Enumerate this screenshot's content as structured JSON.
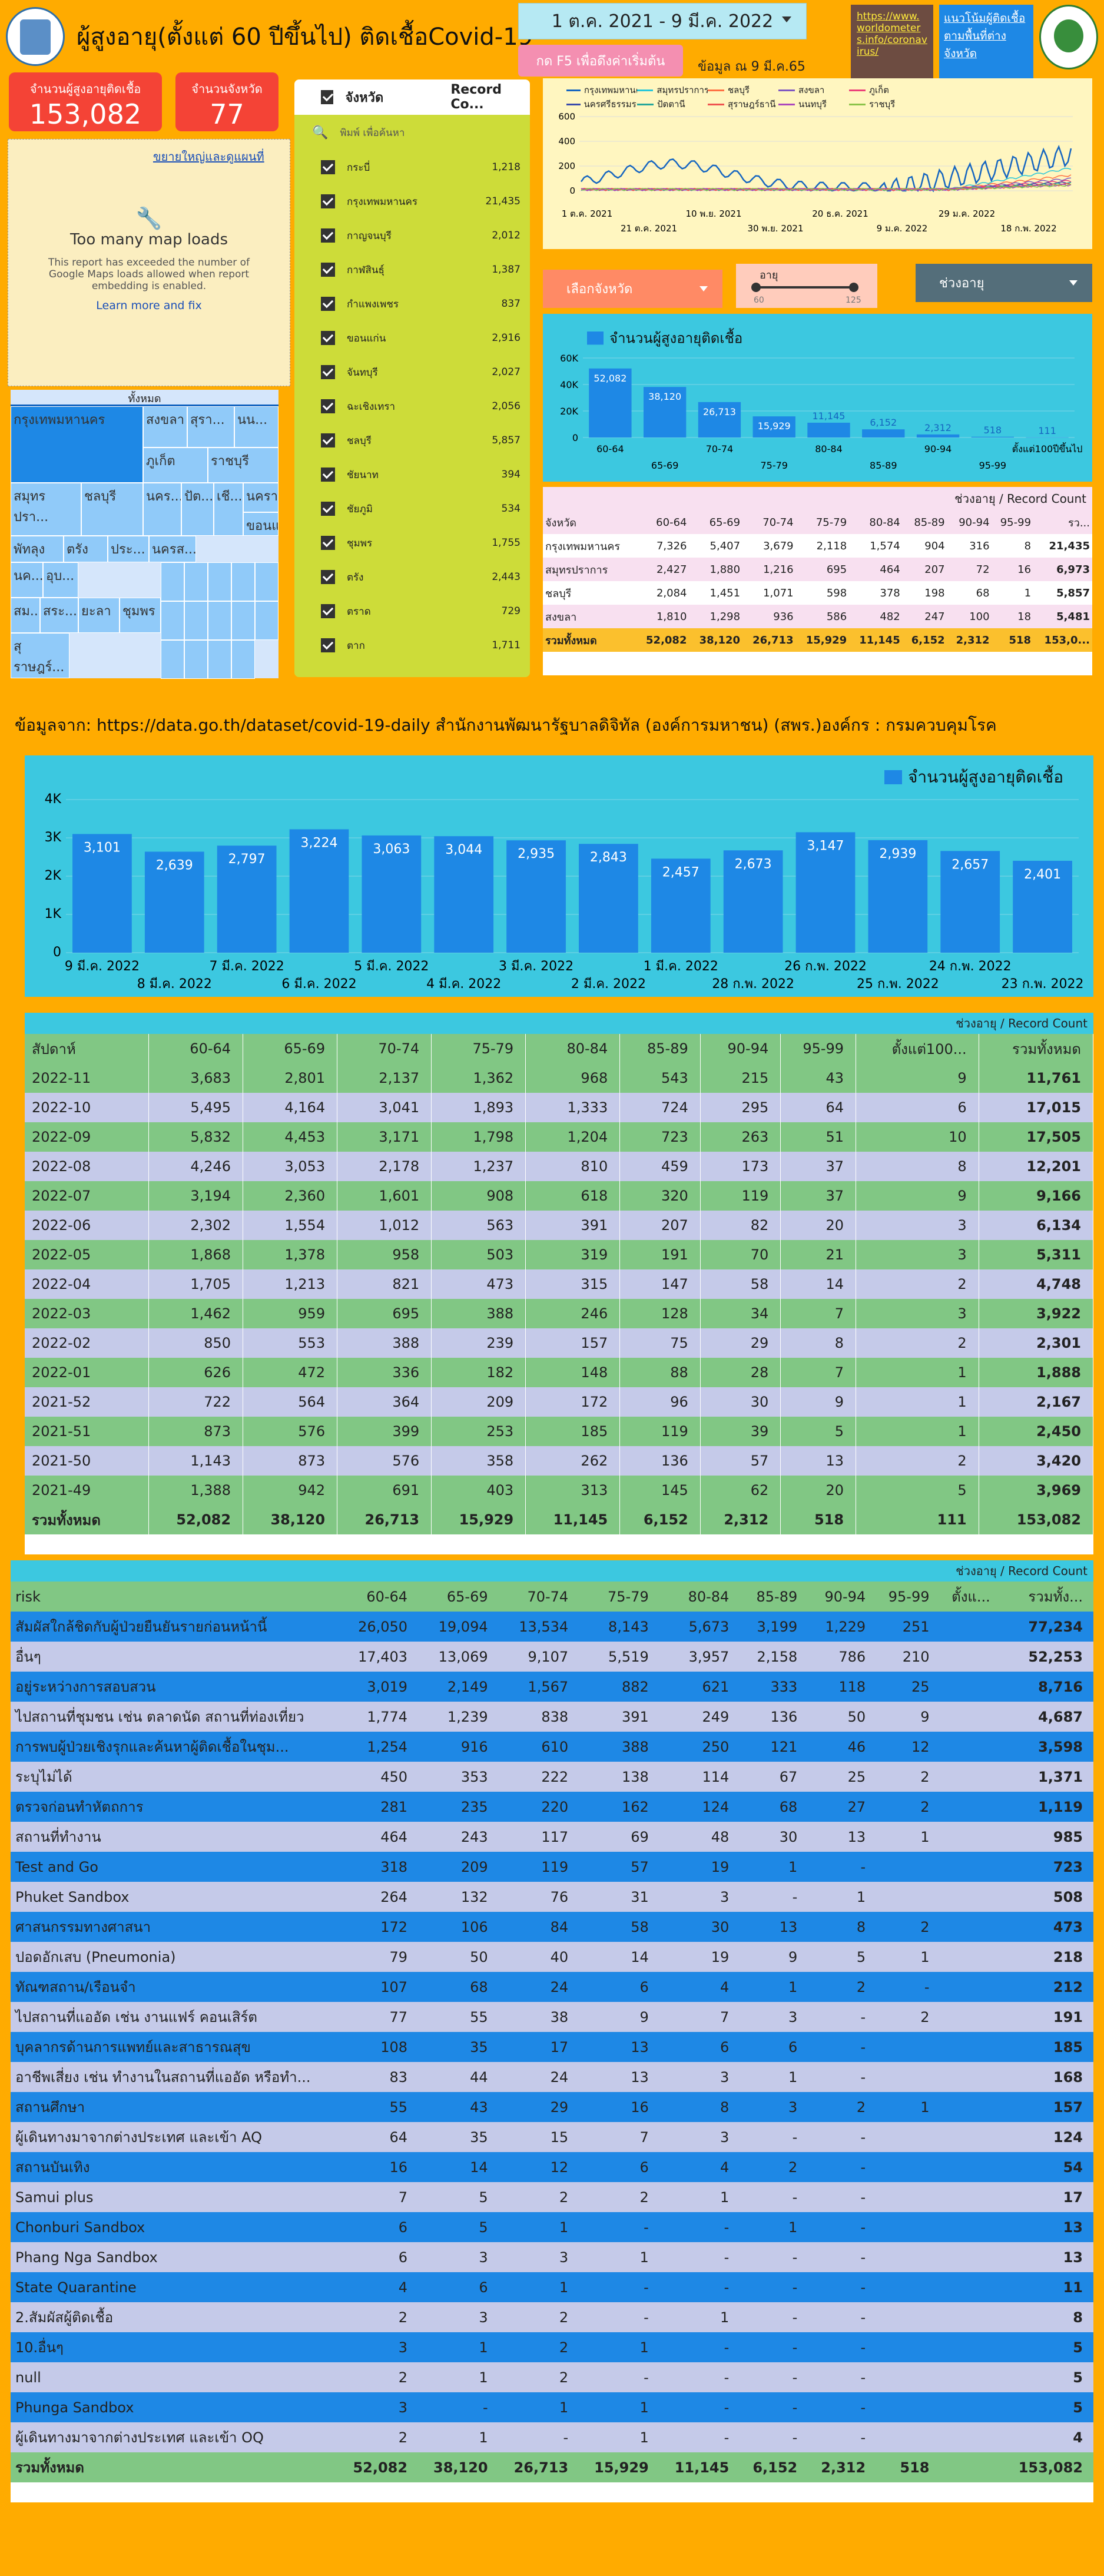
{
  "header": {
    "title": "ผู้สูงอายุ(ตั้งแต่ 60 ปีขึ้นไป) ติดเชื้อCovid-19",
    "date_range": "1 ต.ค. 2021 - 9 มี.ค. 2022",
    "refresh_label": "กด F5 เพื่อดึงค่าเริ่มต้น",
    "as_of": "ข้อมูล ณ 9 มี.ค.65",
    "link1": "https://www.worldometers.info/coronavirus/",
    "link2": "แนวโน้มผู้ติดเชื้อตามพื้นที่ต่างจังหวัด"
  },
  "scorecards": {
    "elderly_label": "จำนวนผู้สูงอายุติดเชื้อ",
    "elderly_value": "153,082",
    "prov_label": "จำนวนจังหวัด",
    "prov_value": "77"
  },
  "map": {
    "link": "ขยายใหญ่และดูแผนที่",
    "title": "Too many map loads",
    "msg": "This report has exceeded the number of Google Maps loads allowed when report embedding is enabled.",
    "learn": "Learn more and fix",
    "icon": "wrench-icon"
  },
  "treemap": {
    "header": "ทั้งหมด",
    "cells": [
      {
        "label": "กรุงเทพมหานคร"
      },
      {
        "label": "สงขลา"
      },
      {
        "label": "สุรา..."
      },
      {
        "label": "นน..."
      },
      {
        "label": "ภูเก็ต"
      },
      {
        "label": "ราชบุรี"
      },
      {
        "label": "สมุทรปรา..."
      },
      {
        "label": "ชลบุรี"
      },
      {
        "label": "นคร..."
      },
      {
        "label": "ปัต..."
      },
      {
        "label": "เชี..."
      },
      {
        "label": "นครา..."
      },
      {
        "label": "ขอนแ..."
      },
      {
        "label": "พัทลุง"
      },
      {
        "label": "ตรัง"
      },
      {
        "label": "ประ..."
      },
      {
        "label": "นครส..."
      },
      {
        "label": "นค..."
      },
      {
        "label": "อุบ..."
      },
      {
        "label": "สม..."
      },
      {
        "label": "สระ..."
      },
      {
        "label": "ยะลา"
      },
      {
        "label": "สุราษฎร์..."
      },
      {
        "label": "ชุมพร"
      }
    ]
  },
  "province_list": {
    "col1": "จังหวัด",
    "col2": "Record Co...",
    "search": "พิมพ์ เพื่อค้นหา",
    "rows": [
      {
        "name": "กระบี่",
        "count": "1,218"
      },
      {
        "name": "กรุงเทพมหานคร",
        "count": "21,435"
      },
      {
        "name": "กาญจนบุรี",
        "count": "2,012"
      },
      {
        "name": "กาฬสินธุ์",
        "count": "1,387"
      },
      {
        "name": "กำแพงเพชร",
        "count": "837"
      },
      {
        "name": "ขอนแก่น",
        "count": "2,916"
      },
      {
        "name": "จันทบุรี",
        "count": "2,027"
      },
      {
        "name": "ฉะเชิงเทรา",
        "count": "2,056"
      },
      {
        "name": "ชลบุรี",
        "count": "5,857"
      },
      {
        "name": "ชัยนาท",
        "count": "394"
      },
      {
        "name": "ชัยภูมิ",
        "count": "534"
      },
      {
        "name": "ชุมพร",
        "count": "1,755"
      },
      {
        "name": "ตรัง",
        "count": "2,443"
      },
      {
        "name": "ตราด",
        "count": "729"
      },
      {
        "name": "ตาก",
        "count": "1,711"
      }
    ]
  },
  "line_chart": {
    "legend": [
      "กรุงเทพมหานคร",
      "สมุทรปราการ",
      "ชลบุรี",
      "สงขลา",
      "ภูเก็ต",
      "นครศรีธรรมราช",
      "ปัตตานี",
      "สุราษฎร์ธานี",
      "นนทบุรี",
      "ราชบุรี"
    ],
    "colors": [
      "#1565c0",
      "#26c6da",
      "#ff7043",
      "#7e57c2",
      "#ec407a",
      "#3949ab",
      "#26a69a",
      "#ef5350",
      "#ab47bc",
      "#8bc34a"
    ],
    "y_ticks": [
      "600",
      "400",
      "200",
      "0"
    ],
    "x_ticks_top": [
      "1 ต.ค. 2021",
      "10 พ.ย. 2021",
      "20 ธ.ค. 2021",
      "29 ม.ค. 2022"
    ],
    "x_ticks_bot": [
      "21 ต.ค. 2021",
      "30 พ.ย. 2021",
      "9 ม.ค. 2022",
      "18 ก.พ. 2022"
    ]
  },
  "filters": {
    "province": "เลือกจังหวัด",
    "age_label": "อายุ",
    "age_min": "60",
    "age_max": "125",
    "range": "ช่วงอายุ"
  },
  "chart_data": [
    {
      "type": "bar",
      "legend": "จำนวนผู้สูงอายุติดเชื้อ",
      "categories": [
        "60-64",
        "65-69",
        "70-74",
        "75-79",
        "80-84",
        "85-89",
        "90-94",
        "95-99",
        "ตั้งแต่100ปีขึ้นไป"
      ],
      "values": [
        52082,
        38120,
        26713,
        15929,
        11145,
        6152,
        2312,
        518,
        111
      ],
      "labels": [
        "52,082",
        "38,120",
        "26,713",
        "15,929",
        "11,145",
        "6,152",
        "2,312",
        "518",
        "111"
      ],
      "y_ticks": [
        "60K",
        "40K",
        "20K",
        "0"
      ],
      "ylim": [
        0,
        60000
      ]
    },
    {
      "type": "bar",
      "legend": "จำนวนผู้สูงอายุติดเชื้อ",
      "categories": [
        "9 มี.ค. 2022",
        "8 มี.ค. 2022",
        "7 มี.ค. 2022",
        "6 มี.ค. 2022",
        "5 มี.ค. 2022",
        "4 มี.ค. 2022",
        "3 มี.ค. 2022",
        "2 มี.ค. 2022",
        "1 มี.ค. 2022",
        "28 ก.พ. 2022",
        "26 ก.พ. 2022",
        "25 ก.พ. 2022",
        "24 ก.พ. 2022",
        "23 ก.พ. 2022"
      ],
      "values": [
        3101,
        2639,
        2797,
        3224,
        3063,
        3044,
        2935,
        2843,
        2457,
        2673,
        3147,
        2939,
        2657,
        2401
      ],
      "labels": [
        "3,101",
        "2,639",
        "2,797",
        "3,224",
        "3,063",
        "3,044",
        "2,935",
        "2,843",
        "2,457",
        "2,673",
        "3,147",
        "2,939",
        "2,657",
        "2,401"
      ],
      "y_ticks": [
        "4K",
        "3K",
        "2K",
        "1K",
        "0"
      ],
      "ylim": [
        0,
        4000
      ]
    }
  ],
  "age_table": {
    "caption": "ช่วงอายุ / Record Count",
    "header": [
      "จังหวัด",
      "60-64",
      "65-69",
      "70-74",
      "75-79",
      "80-84",
      "85-89",
      "90-94",
      "95-99",
      "รว..."
    ],
    "rows": [
      [
        "กรุงเทพมหานคร",
        "7,326",
        "5,407",
        "3,679",
        "2,118",
        "1,574",
        "904",
        "316",
        "8",
        "21,435"
      ],
      [
        "สมุทรปราการ",
        "2,427",
        "1,880",
        "1,216",
        "695",
        "464",
        "207",
        "72",
        "16",
        "6,973"
      ],
      [
        "ชลบุรี",
        "2,084",
        "1,451",
        "1,071",
        "598",
        "378",
        "198",
        "68",
        "1",
        "5,857"
      ],
      [
        "สงขลา",
        "1,810",
        "1,298",
        "936",
        "586",
        "482",
        "247",
        "100",
        "18",
        "5,481"
      ]
    ],
    "total": [
      "รวมทั้งหมด",
      "52,082",
      "38,120",
      "26,713",
      "15,929",
      "11,145",
      "6,152",
      "2,312",
      "518",
      "153,0..."
    ]
  },
  "source": "ข้อมูลจาก: https://data.go.th/dataset/covid-19-daily สำนักงานพัฒนารัฐบาลดิจิทัล (องค์การมหาชน) (สพร.)องค์กร : กรมควบคุมโรค",
  "week_table": {
    "caption": "ช่วงอายุ / Record Count",
    "header": [
      "สัปดาห์",
      "60-64",
      "65-69",
      "70-74",
      "75-79",
      "80-84",
      "85-89",
      "90-94",
      "95-99",
      "ตั้งแต่100...",
      "รวมทั้งหมด"
    ],
    "rows": [
      [
        "2022-11",
        "3,683",
        "2,801",
        "2,137",
        "1,362",
        "968",
        "543",
        "215",
        "43",
        "9",
        "11,761"
      ],
      [
        "2022-10",
        "5,495",
        "4,164",
        "3,041",
        "1,893",
        "1,333",
        "724",
        "295",
        "64",
        "6",
        "17,015"
      ],
      [
        "2022-09",
        "5,832",
        "4,453",
        "3,171",
        "1,798",
        "1,204",
        "723",
        "263",
        "51",
        "10",
        "17,505"
      ],
      [
        "2022-08",
        "4,246",
        "3,053",
        "2,178",
        "1,237",
        "810",
        "459",
        "173",
        "37",
        "8",
        "12,201"
      ],
      [
        "2022-07",
        "3,194",
        "2,360",
        "1,601",
        "908",
        "618",
        "320",
        "119",
        "37",
        "9",
        "9,166"
      ],
      [
        "2022-06",
        "2,302",
        "1,554",
        "1,012",
        "563",
        "391",
        "207",
        "82",
        "20",
        "3",
        "6,134"
      ],
      [
        "2022-05",
        "1,868",
        "1,378",
        "958",
        "503",
        "319",
        "191",
        "70",
        "21",
        "3",
        "5,311"
      ],
      [
        "2022-04",
        "1,705",
        "1,213",
        "821",
        "473",
        "315",
        "147",
        "58",
        "14",
        "2",
        "4,748"
      ],
      [
        "2022-03",
        "1,462",
        "959",
        "695",
        "388",
        "246",
        "128",
        "34",
        "7",
        "3",
        "3,922"
      ],
      [
        "2022-02",
        "850",
        "553",
        "388",
        "239",
        "157",
        "75",
        "29",
        "8",
        "2",
        "2,301"
      ],
      [
        "2022-01",
        "626",
        "472",
        "336",
        "182",
        "148",
        "88",
        "28",
        "7",
        "1",
        "1,888"
      ],
      [
        "2021-52",
        "722",
        "564",
        "364",
        "209",
        "172",
        "96",
        "30",
        "9",
        "1",
        "2,167"
      ],
      [
        "2021-51",
        "873",
        "576",
        "399",
        "253",
        "185",
        "119",
        "39",
        "5",
        "1",
        "2,450"
      ],
      [
        "2021-50",
        "1,143",
        "873",
        "576",
        "358",
        "262",
        "136",
        "57",
        "13",
        "2",
        "3,420"
      ],
      [
        "2021-49",
        "1,388",
        "942",
        "691",
        "403",
        "313",
        "145",
        "62",
        "20",
        "5",
        "3,969"
      ]
    ],
    "total": [
      "รวมทั้งหมด",
      "52,082",
      "38,120",
      "26,713",
      "15,929",
      "11,145",
      "6,152",
      "2,312",
      "518",
      "111",
      "153,082"
    ]
  },
  "risk_table": {
    "caption": "ช่วงอายุ / Record Count",
    "header": [
      "risk",
      "60-64",
      "65-69",
      "70-74",
      "75-79",
      "80-84",
      "85-89",
      "90-94",
      "95-99",
      "ตั้งแ...",
      "รวมทั้ง..."
    ],
    "rows": [
      [
        "สัมผัสใกล้ชิดกับผู้ป่วยยืนยันรายก่อนหน้านี้",
        "26,050",
        "19,094",
        "13,534",
        "8,143",
        "5,673",
        "3,199",
        "1,229",
        "251",
        "",
        "77,234"
      ],
      [
        "อื่นๆ",
        "17,403",
        "13,069",
        "9,107",
        "5,519",
        "3,957",
        "2,158",
        "786",
        "210",
        "",
        "52,253"
      ],
      [
        "อยู่ระหว่างการสอบสวน",
        "3,019",
        "2,149",
        "1,567",
        "882",
        "621",
        "333",
        "118",
        "25",
        "",
        "8,716"
      ],
      [
        "ไปสถานที่ชุมชน เช่น ตลาดนัด สถานที่ท่องเที่ยว",
        "1,774",
        "1,239",
        "838",
        "391",
        "249",
        "136",
        "50",
        "9",
        "",
        "4,687"
      ],
      [
        "การพบผู้ป่วยเชิงรุกและค้นหาผู้ติดเชื้อในชุม...",
        "1,254",
        "916",
        "610",
        "388",
        "250",
        "121",
        "46",
        "12",
        "",
        "3,598"
      ],
      [
        "ระบุไม่ได้",
        "450",
        "353",
        "222",
        "138",
        "114",
        "67",
        "25",
        "2",
        "",
        "1,371"
      ],
      [
        "ตรวจก่อนทำหัตถการ",
        "281",
        "235",
        "220",
        "162",
        "124",
        "68",
        "27",
        "2",
        "",
        "1,119"
      ],
      [
        "สถานที่ทำงาน",
        "464",
        "243",
        "117",
        "69",
        "48",
        "30",
        "13",
        "1",
        "",
        "985"
      ],
      [
        "Test and Go",
        "318",
        "209",
        "119",
        "57",
        "19",
        "1",
        "-",
        "",
        "",
        "723"
      ],
      [
        "Phuket Sandbox",
        "264",
        "132",
        "76",
        "31",
        "3",
        "-",
        "1",
        "",
        "",
        "508"
      ],
      [
        "ศาสนกรรมทางศาสนา",
        "172",
        "106",
        "84",
        "58",
        "30",
        "13",
        "8",
        "2",
        "",
        "473"
      ],
      [
        "ปอดอักเสบ (Pneumonia)",
        "79",
        "50",
        "40",
        "14",
        "19",
        "9",
        "5",
        "1",
        "",
        "218"
      ],
      [
        "ทัณฑสถาน/เรือนจำ",
        "107",
        "68",
        "24",
        "6",
        "4",
        "1",
        "2",
        "-",
        "",
        "212"
      ],
      [
        "ไปสถานที่แออัด เช่น งานแฟร์ คอนเสิร์ต",
        "77",
        "55",
        "38",
        "9",
        "7",
        "3",
        "-",
        "2",
        "",
        "191"
      ],
      [
        "บุคลากรด้านการแพทย์และสาธารณสุข",
        "108",
        "35",
        "17",
        "13",
        "6",
        "6",
        "-",
        "",
        "",
        "185"
      ],
      [
        "อาชีพเสี่ยง เช่น ทำงานในสถานที่แออัด หรือทำ...",
        "83",
        "44",
        "24",
        "13",
        "3",
        "1",
        "-",
        "",
        "",
        "168"
      ],
      [
        "สถานศึกษา",
        "55",
        "43",
        "29",
        "16",
        "8",
        "3",
        "2",
        "1",
        "",
        "157"
      ],
      [
        "ผู้เดินทางมาจากต่างประเทศ และเข้า AQ",
        "64",
        "35",
        "15",
        "7",
        "3",
        "-",
        "-",
        "",
        "",
        "124"
      ],
      [
        "สถานบันเทิง",
        "16",
        "14",
        "12",
        "6",
        "4",
        "2",
        "-",
        "",
        "",
        "54"
      ],
      [
        "Samui plus",
        "7",
        "5",
        "2",
        "2",
        "1",
        "-",
        "-",
        "",
        "",
        "17"
      ],
      [
        "Chonburi Sandbox",
        "6",
        "5",
        "1",
        "-",
        "-",
        "1",
        "-",
        "",
        "",
        "13"
      ],
      [
        "Phang Nga Sandbox",
        "6",
        "3",
        "3",
        "1",
        "-",
        "-",
        "-",
        "",
        "",
        "13"
      ],
      [
        "State Quarantine",
        "4",
        "6",
        "1",
        "-",
        "-",
        "-",
        "-",
        "",
        "",
        "11"
      ],
      [
        "2.สัมผัสผู้ติดเชื้อ",
        "2",
        "3",
        "2",
        "-",
        "1",
        "-",
        "-",
        "",
        "",
        "8"
      ],
      [
        "10.อื่นๆ",
        "3",
        "1",
        "2",
        "1",
        "-",
        "-",
        "-",
        "",
        "",
        "5"
      ],
      [
        "null",
        "2",
        "1",
        "2",
        "-",
        "-",
        "-",
        "-",
        "",
        "",
        "5"
      ],
      [
        "Phunga Sandbox",
        "3",
        "-",
        "1",
        "1",
        "-",
        "-",
        "-",
        "",
        "",
        "5"
      ],
      [
        "ผู้เดินทางมาจากต่างประเทศ และเข้า OQ",
        "2",
        "1",
        "-",
        "1",
        "-",
        "-",
        "-",
        "",
        "",
        "4"
      ]
    ],
    "total": [
      "รวมทั้งหมด",
      "52,082",
      "38,120",
      "26,713",
      "15,929",
      "11,145",
      "6,152",
      "2,312",
      "518",
      "",
      "153,082"
    ]
  }
}
